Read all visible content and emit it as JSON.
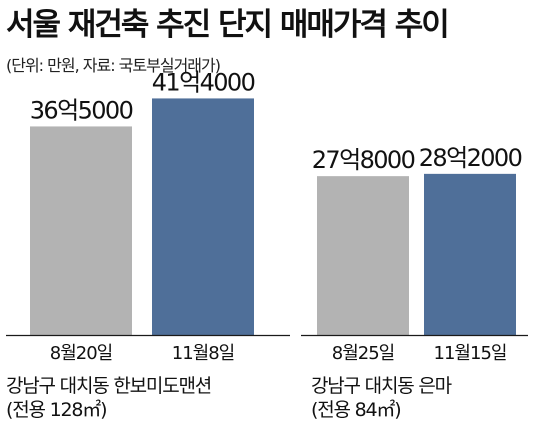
{
  "title": "서울 재건축 추진 단지 매매가격 추이",
  "subtitle": "(단위: 만원, 자료: 국토부실거래가)",
  "colors": {
    "before": "#b3b3b3",
    "after": "#4f6f99",
    "axis": "#1a1a1a"
  },
  "chart_data": [
    {
      "type": "bar",
      "group_label": "강남구 대치동 한보미도맨션",
      "group_sublabel": "(전용 128㎡)",
      "categories": [
        "8월20일",
        "11월8일"
      ],
      "values": [
        365000,
        414000
      ],
      "value_labels": [
        "36억5000",
        "41억4000"
      ],
      "ylim": [
        0,
        420000
      ]
    },
    {
      "type": "bar",
      "group_label": "강남구 대치동 은마",
      "group_sublabel": "(전용 84㎡)",
      "categories": [
        "8월25일",
        "11월15일"
      ],
      "values": [
        278000,
        282000
      ],
      "value_labels": [
        "27억8000",
        "28억2000"
      ],
      "ylim": [
        0,
        420000
      ]
    }
  ]
}
